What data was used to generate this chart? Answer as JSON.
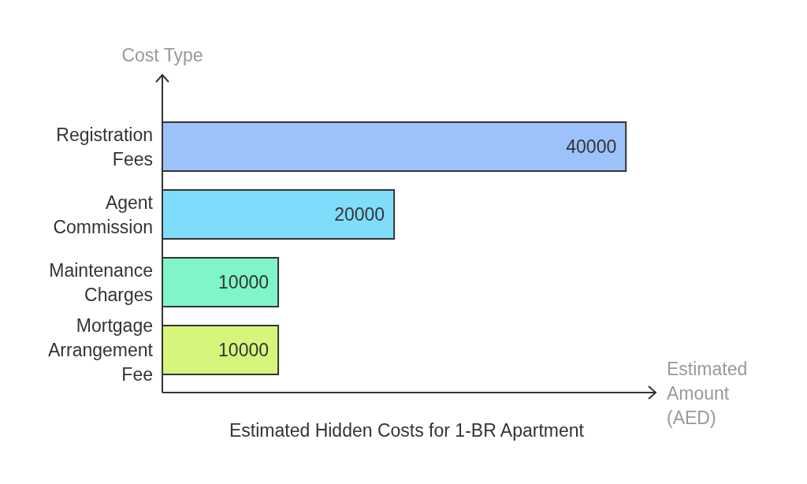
{
  "chart_data": {
    "type": "bar",
    "orientation": "horizontal",
    "title": "Estimated Hidden Costs for 1-BR Apartment",
    "xlabel": "Estimated Amount (AED)",
    "ylabel": "Cost Type",
    "categories": [
      "Registration Fees",
      "Agent Commission",
      "Maintenance Charges",
      "Mortgage Arrangement Fee"
    ],
    "values": [
      40000,
      20000,
      10000,
      10000
    ],
    "colors": [
      "#9dc2fb",
      "#80dcfb",
      "#80f5c9",
      "#d5f57b"
    ],
    "xlim": [
      0,
      42500
    ],
    "data_labels": true
  }
}
